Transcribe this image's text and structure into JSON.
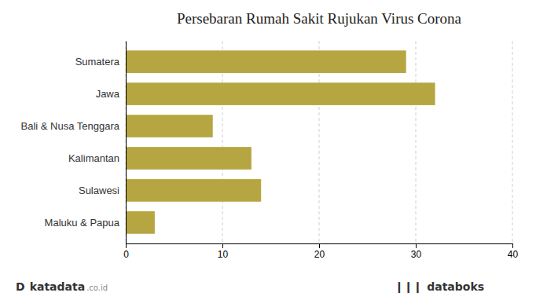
{
  "chart_data": {
    "type": "bar",
    "orientation": "horizontal",
    "title": "Persebaran Rumah Sakit Rujukan Virus Corona",
    "categories": [
      "Sumatera",
      "Jawa",
      "Bali & Nusa Tenggara",
      "Kalimantan",
      "Sulawesi",
      "Maluku & Papua"
    ],
    "values": [
      29,
      32,
      9,
      13,
      14,
      3
    ],
    "color": "#b5a642",
    "xlim": [
      0,
      40
    ],
    "xticks": [
      0,
      10,
      20,
      30,
      40
    ],
    "grid": true,
    "annotations": [
      "D",
      "katadata",
      ".co.id",
      "❙❙❙",
      "databoks"
    ]
  }
}
